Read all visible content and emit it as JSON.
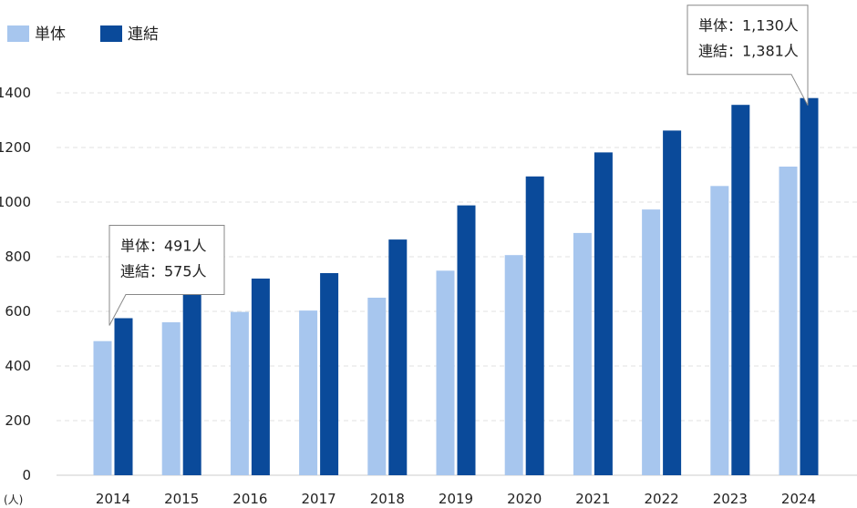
{
  "chart_data": {
    "type": "bar",
    "categories": [
      "2014",
      "2015",
      "2016",
      "2017",
      "2018",
      "2019",
      "2020",
      "2021",
      "2022",
      "2023",
      "2024"
    ],
    "series": [
      {
        "name": "単体",
        "color": "#a7c6ee",
        "values": [
          491,
          560,
          598,
          603,
          650,
          749,
          806,
          887,
          973,
          1059,
          1130
        ]
      },
      {
        "name": "連結",
        "color": "#0a4a9a",
        "values": [
          575,
          680,
          720,
          740,
          863,
          988,
          1094,
          1182,
          1262,
          1356,
          1381
        ]
      }
    ],
    "ylim": [
      0,
      1400
    ],
    "yticks": [
      "0",
      "200",
      "400",
      "600",
      "800",
      "1000",
      "1200",
      "1400"
    ],
    "yunit": "(人)",
    "grid": true,
    "legend": "top-left",
    "annotations": [
      {
        "category": "2014",
        "lines": [
          "単体：491人",
          "連結：575人"
        ]
      },
      {
        "category": "2024",
        "lines": [
          "単体：1,130人",
          "連結：1,381人"
        ]
      }
    ]
  }
}
